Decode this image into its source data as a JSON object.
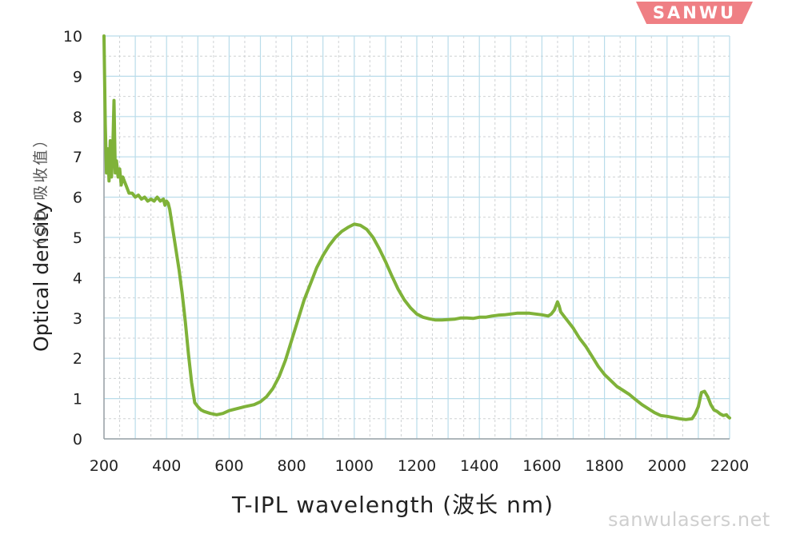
{
  "brand": {
    "logo_text": "SANWU",
    "logo_color": "#ef7f84"
  },
  "watermark": {
    "text": "sanwulasers.net"
  },
  "chart_data": {
    "type": "line",
    "title": "",
    "xlabel": "T-IPL wavelength (波长 nm)",
    "ylabel": "Optical density",
    "ylabel_secondary": "（OD 吸收值）",
    "xlim": [
      200,
      2200
    ],
    "ylim": [
      0,
      10
    ],
    "xticks": [
      200,
      400,
      600,
      800,
      1000,
      1200,
      1400,
      1600,
      1800,
      2000,
      2200
    ],
    "yticks": [
      0,
      1,
      2,
      3,
      4,
      5,
      6,
      7,
      8,
      9,
      10
    ],
    "grid": true,
    "grid_color": "#b9dcea",
    "line_color": "#7fb239",
    "series": [
      {
        "name": "",
        "x": [
          200,
          204,
          208,
          212,
          216,
          220,
          224,
          228,
          232,
          236,
          240,
          245,
          250,
          255,
          260,
          265,
          270,
          280,
          290,
          300,
          310,
          320,
          330,
          340,
          350,
          360,
          370,
          380,
          390,
          395,
          400,
          405,
          410,
          420,
          430,
          440,
          450,
          460,
          470,
          480,
          490,
          500,
          510,
          520,
          540,
          560,
          580,
          600,
          620,
          650,
          680,
          700,
          720,
          740,
          760,
          780,
          800,
          820,
          840,
          860,
          880,
          900,
          920,
          940,
          960,
          980,
          1000,
          1020,
          1040,
          1060,
          1080,
          1100,
          1120,
          1140,
          1160,
          1180,
          1200,
          1220,
          1240,
          1260,
          1280,
          1300,
          1320,
          1340,
          1360,
          1380,
          1400,
          1420,
          1440,
          1460,
          1480,
          1500,
          1520,
          1540,
          1560,
          1580,
          1600,
          1620,
          1630,
          1640,
          1650,
          1655,
          1660,
          1670,
          1680,
          1700,
          1720,
          1740,
          1760,
          1780,
          1800,
          1820,
          1840,
          1860,
          1880,
          1900,
          1920,
          1940,
          1960,
          1980,
          2000,
          2020,
          2040,
          2060,
          2080,
          2090,
          2100,
          2110,
          2120,
          2130,
          2140,
          2150,
          2160,
          2170,
          2180,
          2190,
          2195,
          2200
        ],
        "y": [
          10.0,
          7.8,
          6.6,
          7.2,
          6.4,
          7.4,
          6.5,
          7.1,
          8.4,
          6.6,
          6.9,
          6.5,
          6.7,
          6.3,
          6.5,
          6.4,
          6.3,
          6.1,
          6.1,
          6.0,
          6.05,
          5.95,
          6.0,
          5.9,
          5.95,
          5.9,
          6.0,
          5.9,
          5.95,
          5.8,
          5.9,
          5.85,
          5.7,
          5.2,
          4.7,
          4.2,
          3.6,
          2.9,
          2.1,
          1.4,
          0.9,
          0.8,
          0.72,
          0.68,
          0.63,
          0.6,
          0.63,
          0.7,
          0.74,
          0.8,
          0.85,
          0.92,
          1.05,
          1.25,
          1.55,
          1.95,
          2.45,
          2.95,
          3.45,
          3.85,
          4.25,
          4.55,
          4.8,
          5.0,
          5.15,
          5.25,
          5.33,
          5.3,
          5.2,
          5.0,
          4.72,
          4.4,
          4.05,
          3.72,
          3.45,
          3.25,
          3.1,
          3.02,
          2.98,
          2.95,
          2.95,
          2.96,
          2.97,
          3.0,
          3.0,
          2.99,
          3.02,
          3.02,
          3.05,
          3.07,
          3.08,
          3.1,
          3.12,
          3.12,
          3.12,
          3.1,
          3.08,
          3.05,
          3.1,
          3.2,
          3.4,
          3.3,
          3.15,
          3.05,
          2.95,
          2.75,
          2.5,
          2.3,
          2.05,
          1.8,
          1.6,
          1.45,
          1.3,
          1.2,
          1.1,
          0.97,
          0.85,
          0.75,
          0.65,
          0.58,
          0.56,
          0.53,
          0.5,
          0.48,
          0.5,
          0.62,
          0.8,
          1.15,
          1.18,
          1.05,
          0.85,
          0.72,
          0.68,
          0.62,
          0.58,
          0.6,
          0.55,
          0.52
        ]
      }
    ]
  }
}
